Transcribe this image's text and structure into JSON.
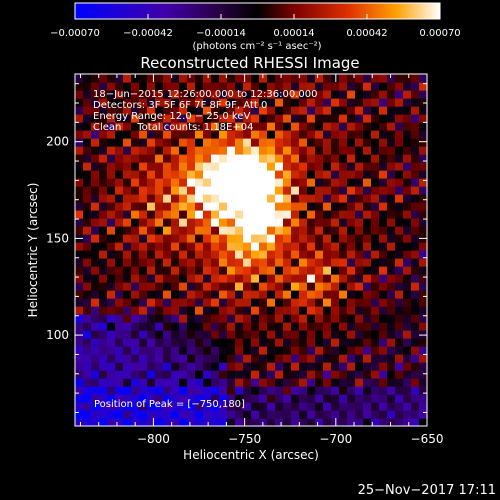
{
  "chart_data": {
    "type": "heatmap",
    "title": "Reconstructed RHESSI Image",
    "xlabel": "Heliocentric X (arcsec)",
    "ylabel": "Heliocentric Y (arcsec)",
    "xlim": [
      -843,
      -650
    ],
    "ylim": [
      53,
      235
    ],
    "x_ticks": [
      -800,
      -750,
      -700,
      -650
    ],
    "x_tick_labels": [
      "−800",
      "−750",
      "−700",
      "−650"
    ],
    "y_ticks": [
      100,
      150,
      200
    ],
    "y_tick_labels": [
      "100",
      "150",
      "200"
    ],
    "colorbar": {
      "range": [
        -0.0007,
        0.0007
      ],
      "ticks": [
        -0.0007,
        -0.00042,
        -0.00014,
        0.00014,
        0.00042,
        0.0007
      ],
      "tick_labels": [
        "−0.00070",
        "−0.00042",
        "−0.00014",
        "0.00014",
        "0.00042",
        "0.00070"
      ],
      "unit_label": "(photons cm⁻² s⁻¹ asec⁻²)"
    },
    "annotations": [
      "18−Jun−2015 12:26:00.000 to 12:36:00.000",
      "Detectors: 3F 5F 6F 7F 8F 9F, Att 0",
      "Energy Range: 12.0 − 25.0 keV",
      "Clean     Total counts: 1.18E+04"
    ],
    "peak_label": "Position of Peak = [−750,180]",
    "peak": {
      "x": -750,
      "y": 180
    },
    "sources": [
      {
        "x": -749,
        "y": 180,
        "sigma": 13,
        "amp": 1.0
      },
      {
        "x": -766,
        "y": 177,
        "sigma": 15,
        "amp": 0.55
      },
      {
        "x": -734,
        "y": 165,
        "sigma": 10,
        "amp": 0.4
      },
      {
        "x": -744,
        "y": 153,
        "sigma": 11,
        "amp": 0.45
      },
      {
        "x": -752,
        "y": 138,
        "sigma": 12,
        "amp": 0.28
      },
      {
        "x": -712,
        "y": 128,
        "sigma": 12,
        "amp": 0.36
      },
      {
        "x": -793,
        "y": 170,
        "sigma": 18,
        "amp": 0.22
      },
      {
        "x": -728,
        "y": 195,
        "sigma": 10,
        "amp": 0.2
      }
    ]
  },
  "footer": {
    "timestamp": "25−Nov−2017 17:11"
  }
}
